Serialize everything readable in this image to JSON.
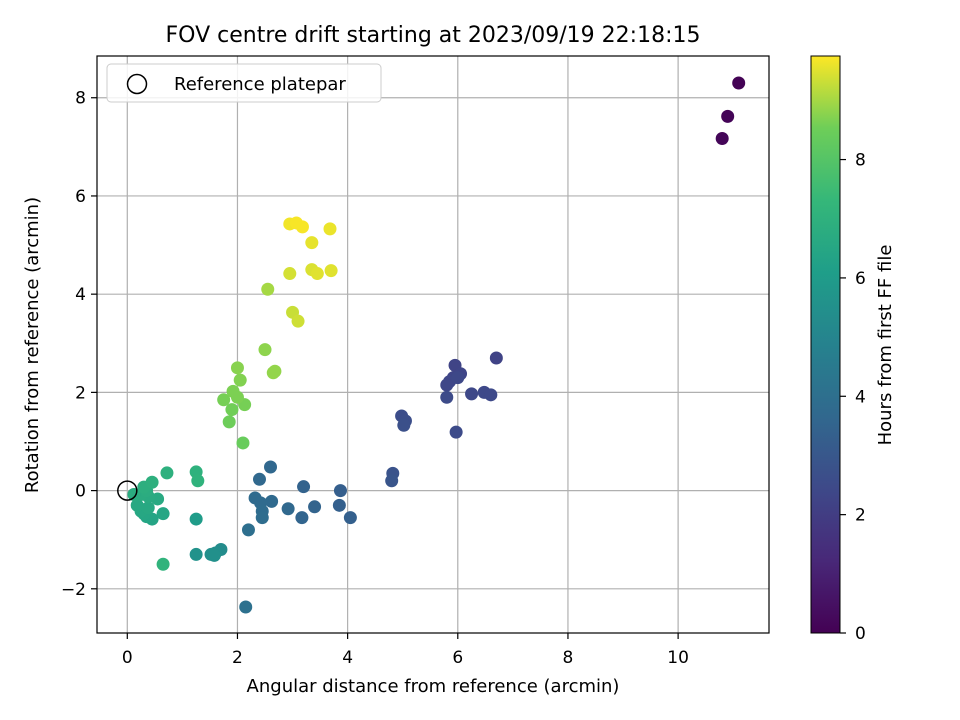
{
  "chart_data": {
    "type": "scatter",
    "title": "FOV centre drift starting at 2023/09/19 22:18:15",
    "xlabel": "Angular distance from reference (arcmin)",
    "ylabel": "Rotation from reference (arcmin)",
    "xlim": [
      -0.55,
      11.65
    ],
    "ylim": [
      -2.9,
      8.85
    ],
    "xticks": [
      0,
      2,
      4,
      6,
      8,
      10
    ],
    "yticks": [
      -2,
      0,
      2,
      4,
      6,
      8
    ],
    "xtick_labels": [
      "0",
      "2",
      "4",
      "6",
      "8",
      "10"
    ],
    "ytick_labels": [
      "−2",
      "0",
      "2",
      "4",
      "6",
      "8"
    ],
    "grid": true,
    "legend": {
      "placement": "upper-left",
      "label": "Reference platepar"
    },
    "reference_point": {
      "x": 0,
      "y": 0
    },
    "colorbar": {
      "label": "Hours from first FF file",
      "colormap": "viridis",
      "range": [
        0,
        9.75
      ],
      "ticks": [
        0,
        2,
        4,
        6,
        8
      ],
      "tick_labels": [
        "0",
        "2",
        "4",
        "6",
        "8"
      ]
    },
    "points": [
      {
        "x": 11.1,
        "y": 8.3,
        "t": 0.05
      },
      {
        "x": 10.9,
        "y": 7.62,
        "t": 0.1
      },
      {
        "x": 10.8,
        "y": 7.17,
        "t": 0.15
      },
      {
        "x": 6.7,
        "y": 2.7,
        "t": 2.2
      },
      {
        "x": 5.95,
        "y": 2.55,
        "t": 2.25
      },
      {
        "x": 6.05,
        "y": 2.38,
        "t": 2.3
      },
      {
        "x": 5.92,
        "y": 2.3,
        "t": 2.3
      },
      {
        "x": 5.85,
        "y": 2.22,
        "t": 2.35
      },
      {
        "x": 5.8,
        "y": 2.15,
        "t": 2.35
      },
      {
        "x": 6.0,
        "y": 2.3,
        "t": 2.4
      },
      {
        "x": 6.25,
        "y": 1.97,
        "t": 2.4
      },
      {
        "x": 6.48,
        "y": 2.0,
        "t": 2.45
      },
      {
        "x": 6.6,
        "y": 1.95,
        "t": 2.45
      },
      {
        "x": 5.8,
        "y": 1.9,
        "t": 2.5
      },
      {
        "x": 5.97,
        "y": 1.19,
        "t": 2.5
      },
      {
        "x": 4.98,
        "y": 1.52,
        "t": 2.6
      },
      {
        "x": 5.05,
        "y": 1.42,
        "t": 2.65
      },
      {
        "x": 5.02,
        "y": 1.33,
        "t": 2.7
      },
      {
        "x": 4.82,
        "y": 0.35,
        "t": 2.85
      },
      {
        "x": 4.8,
        "y": 0.2,
        "t": 2.9
      },
      {
        "x": 3.87,
        "y": 0.0,
        "t": 3.3
      },
      {
        "x": 3.85,
        "y": -0.3,
        "t": 3.35
      },
      {
        "x": 4.05,
        "y": -0.55,
        "t": 3.35
      },
      {
        "x": 3.2,
        "y": 0.08,
        "t": 3.45
      },
      {
        "x": 3.4,
        "y": -0.33,
        "t": 3.5
      },
      {
        "x": 3.17,
        "y": -0.55,
        "t": 3.55
      },
      {
        "x": 2.6,
        "y": 0.48,
        "t": 3.65
      },
      {
        "x": 2.4,
        "y": 0.23,
        "t": 3.7
      },
      {
        "x": 2.92,
        "y": -0.37,
        "t": 3.7
      },
      {
        "x": 2.62,
        "y": -0.22,
        "t": 3.75
      },
      {
        "x": 2.32,
        "y": -0.15,
        "t": 3.8
      },
      {
        "x": 2.42,
        "y": -0.25,
        "t": 3.8
      },
      {
        "x": 2.45,
        "y": -0.42,
        "t": 3.85
      },
      {
        "x": 2.45,
        "y": -0.55,
        "t": 3.9
      },
      {
        "x": 2.2,
        "y": -0.8,
        "t": 4.0
      },
      {
        "x": 2.15,
        "y": -2.37,
        "t": 4.1
      },
      {
        "x": 1.7,
        "y": -1.2,
        "t": 5.3
      },
      {
        "x": 1.6,
        "y": -1.27,
        "t": 5.4
      },
      {
        "x": 1.52,
        "y": -1.3,
        "t": 5.45
      },
      {
        "x": 1.58,
        "y": -1.32,
        "t": 5.5
      },
      {
        "x": 1.25,
        "y": -1.3,
        "t": 5.55
      },
      {
        "x": 1.25,
        "y": -0.58,
        "t": 6.0
      },
      {
        "x": 0.45,
        "y": -0.58,
        "t": 6.4
      },
      {
        "x": 0.35,
        "y": -0.53,
        "t": 6.45
      },
      {
        "x": 0.65,
        "y": -0.47,
        "t": 6.5
      },
      {
        "x": 0.3,
        "y": -0.47,
        "t": 6.5
      },
      {
        "x": 0.25,
        "y": -0.42,
        "t": 6.55
      },
      {
        "x": 0.18,
        "y": -0.3,
        "t": 6.6
      },
      {
        "x": 0.38,
        "y": -0.35,
        "t": 6.6
      },
      {
        "x": 0.55,
        "y": -0.17,
        "t": 6.65
      },
      {
        "x": 0.38,
        "y": -0.12,
        "t": 6.7
      },
      {
        "x": 0.25,
        "y": -0.08,
        "t": 6.75
      },
      {
        "x": 0.12,
        "y": -0.08,
        "t": 6.75
      },
      {
        "x": 0.35,
        "y": 0.0,
        "t": 6.8
      },
      {
        "x": 0.3,
        "y": 0.07,
        "t": 6.85
      },
      {
        "x": 0.45,
        "y": 0.17,
        "t": 6.9
      },
      {
        "x": 0.72,
        "y": 0.36,
        "t": 6.95
      },
      {
        "x": 1.25,
        "y": 0.38,
        "t": 7.0
      },
      {
        "x": 1.28,
        "y": 0.2,
        "t": 7.05
      },
      {
        "x": 0.65,
        "y": -1.5,
        "t": 7.1
      },
      {
        "x": 2.1,
        "y": 0.97,
        "t": 8.4
      },
      {
        "x": 1.85,
        "y": 1.4,
        "t": 8.5
      },
      {
        "x": 1.9,
        "y": 1.65,
        "t": 8.55
      },
      {
        "x": 2.13,
        "y": 1.75,
        "t": 8.6
      },
      {
        "x": 1.75,
        "y": 1.85,
        "t": 8.6
      },
      {
        "x": 2.0,
        "y": 1.9,
        "t": 8.65
      },
      {
        "x": 1.92,
        "y": 2.02,
        "t": 8.65
      },
      {
        "x": 2.05,
        "y": 2.25,
        "t": 8.7
      },
      {
        "x": 2.0,
        "y": 2.5,
        "t": 8.75
      },
      {
        "x": 2.5,
        "y": 2.87,
        "t": 8.8
      },
      {
        "x": 2.65,
        "y": 2.4,
        "t": 8.85
      },
      {
        "x": 2.68,
        "y": 2.43,
        "t": 8.85
      },
      {
        "x": 2.55,
        "y": 4.1,
        "t": 9.0
      },
      {
        "x": 3.0,
        "y": 3.63,
        "t": 9.3
      },
      {
        "x": 3.1,
        "y": 3.45,
        "t": 9.35
      },
      {
        "x": 2.95,
        "y": 4.42,
        "t": 9.4
      },
      {
        "x": 3.35,
        "y": 4.5,
        "t": 9.45
      },
      {
        "x": 3.45,
        "y": 4.42,
        "t": 9.5
      },
      {
        "x": 3.7,
        "y": 4.48,
        "t": 9.5
      },
      {
        "x": 3.35,
        "y": 5.05,
        "t": 9.55
      },
      {
        "x": 3.68,
        "y": 5.33,
        "t": 9.6
      },
      {
        "x": 2.95,
        "y": 5.43,
        "t": 9.65
      },
      {
        "x": 3.07,
        "y": 5.45,
        "t": 9.7
      },
      {
        "x": 3.18,
        "y": 5.37,
        "t": 9.7
      }
    ]
  }
}
